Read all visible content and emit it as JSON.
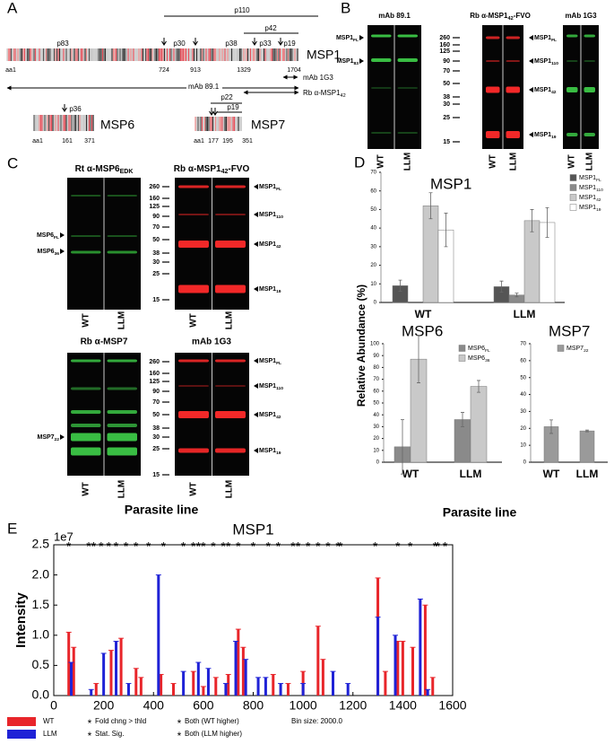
{
  "panel_labels": [
    "A",
    "B",
    "C",
    "D",
    "E"
  ],
  "panel_a": {
    "msp1": {
      "name": "MSP1",
      "fragments": [
        "p83",
        "p30",
        "p38",
        "p33",
        "p19"
      ],
      "spans": [
        "p110",
        "p42"
      ],
      "positions": [
        "aa1",
        724,
        913,
        1329,
        1704
      ]
    },
    "msp6": {
      "name": "MSP6",
      "fragments": [
        "p36"
      ],
      "positions": [
        "aa1",
        161,
        371
      ]
    },
    "msp7": {
      "name": "MSP7",
      "spans": [
        "p22",
        "p19"
      ],
      "positions": [
        "aa1",
        177,
        195,
        351
      ]
    },
    "antibodies": [
      "mAb 89.1",
      "mAb 1G3",
      {
        "base": "Rb α-MSP1",
        "sub": "42"
      }
    ]
  },
  "panel_b": {
    "blots": [
      {
        "title": "mAb 89.1",
        "labels": [
          {
            "base": "MSP1",
            "sub": "FL"
          },
          {
            "base": "MSP1",
            "sub": "83"
          }
        ]
      },
      {
        "title": {
          "base": "Rb α-MSP1",
          "sub": "42",
          "rest": "-FVO"
        },
        "labels": [
          {
            "base": "MSP1",
            "sub": "FL"
          },
          {
            "base": "MSP1",
            "sub": "110"
          },
          {
            "base": "MSP1",
            "sub": "42"
          },
          {
            "base": "MSP1",
            "sub": "19"
          }
        ]
      },
      {
        "title": "mAb 1G3"
      }
    ],
    "markers": [
      260,
      160,
      125,
      90,
      70,
      50,
      38,
      30,
      25,
      15
    ],
    "lanes": [
      "WT",
      "LLM"
    ]
  },
  "panel_c": {
    "blots": [
      {
        "title": {
          "base": "Rt α-MSP6",
          "sub": "EDK"
        },
        "labels": [
          {
            "base": "MSP6",
            "sub": "FL"
          },
          {
            "base": "MSP6",
            "sub": "36"
          }
        ]
      },
      {
        "title": {
          "base": "Rb α-MSP1",
          "sub": "42",
          "rest": "-FVO"
        },
        "labels": [
          {
            "base": "MSP1",
            "sub": "FL"
          },
          {
            "base": "MSP1",
            "sub": "110"
          },
          {
            "base": "MSP1",
            "sub": "42"
          },
          {
            "base": "MSP1",
            "sub": "19"
          }
        ]
      },
      {
        "title": "Rb α-MSP7",
        "labels": [
          {
            "base": "MSP7",
            "sub": "22"
          }
        ]
      },
      {
        "title": "mAb 1G3",
        "labels": [
          {
            "base": "MSP1",
            "sub": "FL"
          },
          {
            "base": "MSP1",
            "sub": "110"
          },
          {
            "base": "MSP1",
            "sub": "42"
          },
          {
            "base": "MSP1",
            "sub": "19"
          }
        ]
      }
    ],
    "markers": [
      260,
      160,
      125,
      90,
      70,
      50,
      38,
      30,
      25,
      15
    ],
    "lanes": [
      "WT",
      "LLM"
    ],
    "xlabel": "Parasite line"
  },
  "panel_d": {
    "ylabel": "Relative Abundance (%)",
    "xlabel": "Parasite line"
  },
  "chart_data": [
    {
      "type": "bar",
      "title": "MSP1",
      "categories": [
        "WT",
        "LLM"
      ],
      "ylim": [
        0,
        70
      ],
      "yticks": [
        0,
        10,
        20,
        30,
        40,
        50,
        60,
        70
      ],
      "series": [
        {
          "name": {
            "base": "MSP1",
            "sub": "FL"
          },
          "color": "#555555",
          "values": [
            9,
            8.5
          ],
          "errors": [
            3,
            3
          ]
        },
        {
          "name": {
            "base": "MSP1",
            "sub": "110"
          },
          "color": "#8a8a8a",
          "values": [
            null,
            4
          ],
          "errors": [
            null,
            1
          ]
        },
        {
          "name": {
            "base": "MSP1",
            "sub": "42"
          },
          "color": "#c9c9c9",
          "values": [
            52,
            44
          ],
          "errors": [
            7,
            6
          ]
        },
        {
          "name": {
            "base": "MSP1",
            "sub": "19"
          },
          "color": "#ffffff",
          "values": [
            39,
            43
          ],
          "errors": [
            9,
            8
          ]
        }
      ]
    },
    {
      "type": "bar",
      "title": "MSP6",
      "categories": [
        "WT",
        "LLM"
      ],
      "ylim": [
        0,
        100
      ],
      "yticks": [
        0,
        10,
        20,
        30,
        40,
        50,
        60,
        70,
        80,
        90,
        100
      ],
      "series": [
        {
          "name": {
            "base": "MSP6",
            "sub": "FL"
          },
          "color": "#8a8a8a",
          "values": [
            13,
            36
          ],
          "errors": [
            23,
            6
          ]
        },
        {
          "name": {
            "base": "MSP6",
            "sub": "36"
          },
          "color": "#c9c9c9",
          "values": [
            87,
            64
          ],
          "errors": [
            20,
            5
          ]
        }
      ]
    },
    {
      "type": "bar",
      "title": "MSP7",
      "categories": [
        "WT",
        "LLM"
      ],
      "ylim": [
        0,
        70
      ],
      "yticks": [
        0,
        10,
        20,
        30,
        40,
        50,
        60,
        70
      ],
      "series": [
        {
          "name": {
            "base": "MSP7",
            "sub": "22"
          },
          "color": "#9a9a9a",
          "values": [
            21,
            18.5
          ],
          "errors": [
            4,
            0.5
          ]
        }
      ]
    },
    {
      "type": "stem",
      "title": "MSP1",
      "ylabel": "Intensity",
      "y_multiplier": "1e7",
      "note": "Bin size: 2000.0",
      "xlim": [
        0,
        1600
      ],
      "xticks": [
        0,
        200,
        400,
        600,
        800,
        1000,
        1200,
        1400,
        1600
      ],
      "ylim": [
        0,
        2.5
      ],
      "yticks": [
        {
          "value": 0,
          "label": "0.0"
        },
        0.5,
        {
          "value": 1,
          "label": "1.0"
        },
        1.5,
        {
          "value": 2,
          "label": "2.0"
        },
        2.5
      ],
      "series": [
        {
          "name": "WT",
          "color": "#e8252a",
          "x": [
            60,
            80,
            170,
            230,
            270,
            330,
            350,
            430,
            480,
            560,
            600,
            650,
            700,
            740,
            760,
            880,
            940,
            1000,
            1060,
            1080,
            1300,
            1330,
            1380,
            1400,
            1440,
            1490,
            1520
          ],
          "values": [
            1.05,
            0.8,
            0.2,
            0.75,
            0.95,
            0.45,
            0.3,
            0.35,
            0.2,
            0.4,
            0.15,
            0.3,
            0.35,
            1.1,
            0.8,
            0.35,
            0.2,
            0.4,
            1.15,
            0.6,
            1.95,
            0.4,
            0.9,
            0.9,
            0.8,
            1.5,
            0.3
          ]
        },
        {
          "name": "LLM",
          "color": "#1f22d6",
          "x": [
            70,
            150,
            200,
            250,
            300,
            420,
            520,
            580,
            620,
            690,
            730,
            770,
            820,
            850,
            910,
            1000,
            1120,
            1180,
            1300,
            1370,
            1470,
            1500
          ],
          "values": [
            0.55,
            0.1,
            0.7,
            0.9,
            0.2,
            2.0,
            0.4,
            0.55,
            0.45,
            0.2,
            0.9,
            0.6,
            0.3,
            0.3,
            0.2,
            0.2,
            0.4,
            0.2,
            1.3,
            1.0,
            1.6,
            0.1
          ]
        }
      ],
      "markers": [
        {
          "name": "Fold chng > thld",
          "color": "#888888",
          "y": 2.5,
          "x": [
            160,
            900
          ]
        },
        {
          "name": "Stat. Sig.",
          "color": "#000000",
          "y": 2.5,
          "x": [
            140,
            190,
            290,
            380,
            560,
            600,
            640,
            700,
            740,
            800,
            860,
            960,
            1020,
            1100,
            1140,
            1290,
            1540
          ]
        },
        {
          "name": "Both (WT higher)",
          "color": "#c0392b",
          "y": 2.5,
          "x": [
            60,
            330,
            580,
            1060,
            1430
          ]
        },
        {
          "name": "Both (LLM higher)",
          "color": "#2b3bd6",
          "y": 2.5,
          "x": [
            220,
            250,
            440,
            520,
            680,
            980,
            1150,
            1380,
            1530,
            1570
          ]
        }
      ]
    }
  ]
}
